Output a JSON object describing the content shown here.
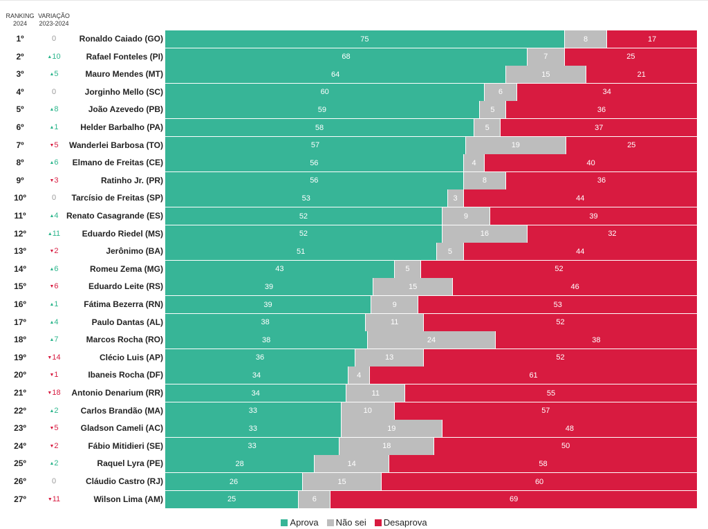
{
  "header": {
    "ranking_label": "RANKING\n2024",
    "variation_label": "VARIAÇÃO\n2023-2024"
  },
  "colors": {
    "aprova": "#37b597",
    "nao_sei": "#bdbdbd",
    "desaprova": "#d81b40",
    "up": "#2bb58b",
    "down": "#d71a3f",
    "zero": "#9a9a9a"
  },
  "legend": {
    "aprova": "Aprova",
    "nao_sei": "Não sei",
    "desaprova": "Desaprova"
  },
  "chart_data": {
    "type": "bar",
    "stacked": true,
    "orientation": "horizontal",
    "legend_position": "bottom",
    "categories": [
      "Ronaldo Caiado (GO)",
      "Rafael Fonteles (PI)",
      "Mauro Mendes (MT)",
      "Jorginho Mello (SC)",
      "João Azevedo (PB)",
      "Helder Barbalho (PA)",
      "Wanderlei Barbosa (TO)",
      "Elmano de Freitas (CE)",
      "Ratinho Jr. (PR)",
      "Tarcísio de Freitas (SP)",
      "Renato Casagrande (ES)",
      "Eduardo Riedel (MS)",
      "Jerônimo (BA)",
      "Romeu Zema (MG)",
      "Eduardo Leite (RS)",
      "Fátima Bezerra (RN)",
      "Paulo Dantas (AL)",
      "Marcos Rocha (RO)",
      "Clécio Luis (AP)",
      "Ibaneis Rocha (DF)",
      "Antonio Denarium (RR)",
      "Carlos Brandão (MA)",
      "Gladson Cameli (AC)",
      "Fábio Mitidieri (SE)",
      "Raquel Lyra (PE)",
      "Cláudio Castro (RJ)",
      "Wilson Lima (AM)"
    ],
    "ranks": [
      "1º",
      "2º",
      "3º",
      "4º",
      "5º",
      "6º",
      "7º",
      "8º",
      "9º",
      "10º",
      "11º",
      "12º",
      "13º",
      "14º",
      "15º",
      "16º",
      "17º",
      "18º",
      "19º",
      "20º",
      "21º",
      "22º",
      "23º",
      "24º",
      "25º",
      "26º",
      "27º"
    ],
    "variation": [
      0,
      10,
      5,
      0,
      8,
      1,
      -5,
      6,
      -3,
      0,
      4,
      11,
      -2,
      6,
      -6,
      1,
      4,
      7,
      -14,
      -1,
      -18,
      2,
      -5,
      -2,
      2,
      0,
      -11
    ],
    "series": [
      {
        "name": "Aprova",
        "values": [
          75,
          68,
          64,
          60,
          59,
          58,
          57,
          56,
          56,
          53,
          52,
          52,
          51,
          43,
          39,
          39,
          38,
          38,
          36,
          34,
          34,
          33,
          33,
          33,
          28,
          26,
          25
        ]
      },
      {
        "name": "Não sei",
        "values": [
          8,
          7,
          15,
          6,
          5,
          5,
          19,
          4,
          8,
          3,
          9,
          16,
          5,
          5,
          15,
          9,
          11,
          24,
          13,
          4,
          11,
          10,
          19,
          18,
          14,
          15,
          6
        ]
      },
      {
        "name": "Desaprova",
        "values": [
          17,
          25,
          21,
          34,
          36,
          37,
          25,
          40,
          36,
          44,
          39,
          32,
          44,
          52,
          46,
          53,
          52,
          38,
          52,
          61,
          55,
          57,
          48,
          50,
          58,
          60,
          69
        ]
      }
    ]
  }
}
